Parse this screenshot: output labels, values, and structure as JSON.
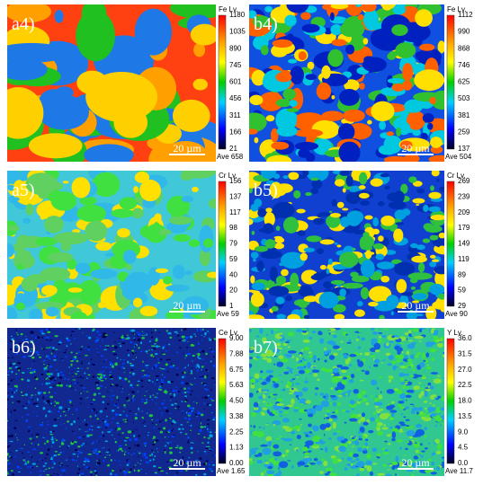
{
  "panels": [
    {
      "label": "a4)",
      "element": "Fe Lv.",
      "ticks": [
        "1180",
        "1035",
        "890",
        "745",
        "601",
        "456",
        "311",
        "166",
        "21"
      ],
      "ave": "Ave 658",
      "scale": "20 µm"
    },
    {
      "label": "b4)",
      "element": "Fe Lv.",
      "ticks": [
        "1112",
        "990",
        "868",
        "746",
        "625",
        "503",
        "381",
        "259",
        "137"
      ],
      "ave": "Ave 504",
      "scale": "20 µm"
    },
    {
      "label": "a5)",
      "element": "Cr Lv.",
      "ticks": [
        "156",
        "137",
        "117",
        "98",
        "79",
        "59",
        "40",
        "20",
        "1"
      ],
      "ave": "Ave 59",
      "scale": "20 µm"
    },
    {
      "label": "b5)",
      "element": "Cr Lv.",
      "ticks": [
        "269",
        "239",
        "209",
        "179",
        "149",
        "119",
        "89",
        "59",
        "29"
      ],
      "ave": "Ave 90",
      "scale": "20 µm"
    },
    {
      "label": "b6)",
      "element": "Ce Lv.",
      "ticks": [
        "9.00",
        "7.88",
        "6.75",
        "5.63",
        "4.50",
        "3.38",
        "2.25",
        "1.13",
        "0.00"
      ],
      "ave": "Ave 1.65",
      "scale": "20 µm"
    },
    {
      "label": "b7)",
      "element": "Y Lv.",
      "ticks": [
        "36.0",
        "31.5",
        "27.0",
        "22.5",
        "18.0",
        "13.5",
        "9.0",
        "4.5",
        "0.0"
      ],
      "ave": "Ave 11.7",
      "scale": "20 µm"
    }
  ]
}
